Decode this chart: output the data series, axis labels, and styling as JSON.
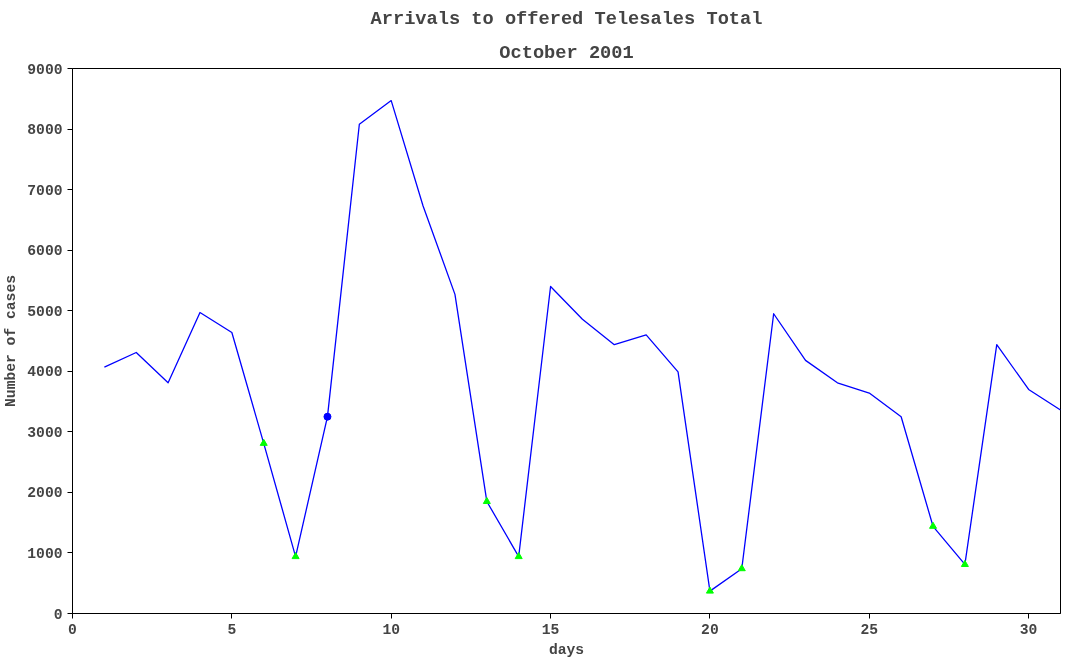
{
  "chart_data": {
    "type": "line",
    "title": "Arrivals to offered Telesales Total",
    "subtitle": "October 2001",
    "xlabel": "days",
    "ylabel": "Number of cases",
    "xlim": [
      0,
      31
    ],
    "xticks": [
      0,
      5,
      10,
      15,
      20,
      25,
      30
    ],
    "ylim": [
      0,
      9000
    ],
    "yticks": [
      0,
      1000,
      2000,
      3000,
      4000,
      5000,
      6000,
      7000,
      8000,
      9000
    ],
    "grid": false,
    "series": [
      {
        "color": "#0000ff",
        "marker": "none",
        "x": [
          1,
          2,
          3,
          4,
          5,
          6,
          7,
          8,
          9,
          10,
          11,
          12,
          13,
          14,
          15,
          16,
          17,
          18,
          19,
          20,
          21,
          22,
          23,
          24,
          25,
          26,
          27,
          28,
          29,
          30,
          31
        ],
        "values": [
          4070,
          4310,
          3810,
          4970,
          4640,
          2810,
          940,
          3250,
          8080,
          8470,
          6730,
          5270,
          1850,
          940,
          5400,
          4860,
          4440,
          4600,
          3990,
          370,
          740,
          4950,
          4180,
          3810,
          3640,
          3250,
          1440,
          810,
          4440,
          3700,
          3360
        ]
      },
      {
        "type": "scatter",
        "color": "#00ff00",
        "marker": "triangle",
        "x": [
          6,
          7,
          13,
          14,
          20,
          21,
          27,
          28
        ],
        "values": [
          2810,
          940,
          1850,
          940,
          370,
          740,
          1440,
          810
        ]
      },
      {
        "type": "scatter",
        "color": "#0000ff",
        "marker": "circle",
        "x": [
          8
        ],
        "values": [
          3250
        ]
      }
    ]
  }
}
